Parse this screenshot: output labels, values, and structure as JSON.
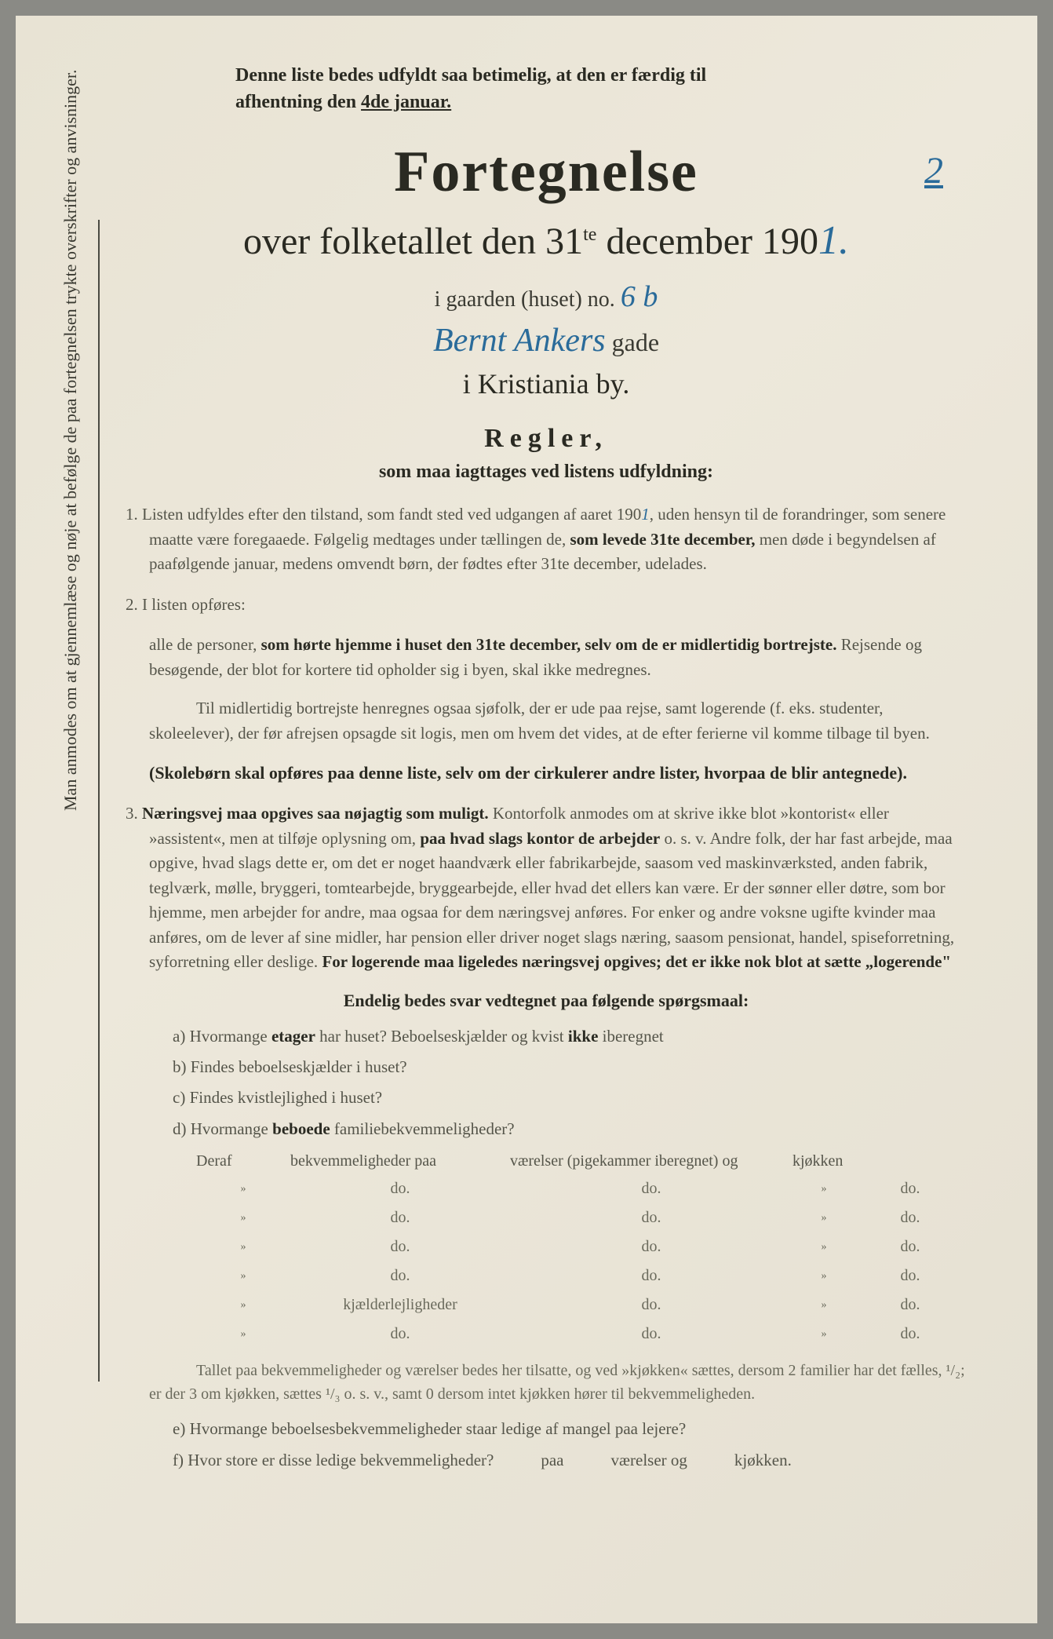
{
  "colors": {
    "paper_bg": "#e8e3d4",
    "text_dark": "#2a2a22",
    "text_body": "#55554a",
    "text_faded": "#6a6a5c",
    "handwriting": "#2a6b9a",
    "page_edge": "#8a8a85"
  },
  "typography": {
    "title_fontsize": 74,
    "subtitle_fontsize": 48,
    "body_fontsize": 21,
    "header_fontsize": 24
  },
  "sidebar": "Man anmodes om at gjennemlæse og nøje at befølge de paa fortegnelsen trykte overskrifter og anvisninger.",
  "top_notice_line1": "Denne liste bedes udfyldt saa betimelig, at den er færdig til",
  "top_notice_line2_pre": "afhentning den ",
  "top_notice_line2_under": "4de januar.",
  "page_number_hw": "2",
  "title": "Fortegnelse",
  "subtitle_pre": "over folketallet den 31",
  "subtitle_sup": "te",
  "subtitle_post": " december 190",
  "year_hw": "1.",
  "gaard_label": "i gaarden (huset) no.",
  "gaard_no_hw": "6 b",
  "street_hw": "Bernt Ankers",
  "gade_label": "gade",
  "city": "i Kristiania by.",
  "regler": "Regler,",
  "regler_sub": "som maa iagttages ved listens udfyldning:",
  "rule1_num": "1.",
  "rule1_text_a": "Listen udfyldes efter den tilstand, som fandt sted ved udgangen af aaret 190",
  "rule1_hw": "1",
  "rule1_text_b": ", uden hensyn til de forandringer, som senere maatte være foregaaede. Følgelig medtages under tællingen de, ",
  "rule1_bold1": "som levede 31te december,",
  "rule1_text_c": " men døde i begyndelsen af paafølgende januar, medens omvendt børn, der fødtes efter 31te december, udelades.",
  "rule2_num": "2.",
  "rule2_text_a": "I listen opføres:",
  "rule2_sub1_a": "alle de personer, ",
  "rule2_sub1_bold": "som hørte hjemme i huset den 31te december, selv om de er midlertidig bortrejste.",
  "rule2_sub1_b": " Rejsende og besøgende, der blot for kortere tid opholder sig i byen, skal ikke medregnes.",
  "rule2_sub2": "Til midlertidig bortrejste henregnes ogsaa sjøfolk, der er ude paa rejse, samt logerende (f. eks. studenter, skoleelever), der før afrejsen opsagde sit logis, men om hvem det vides, at de efter ferierne vil komme tilbage til byen.",
  "rule2_sub3": "(Skolebørn skal opføres paa denne liste, selv om der cirkulerer andre lister, hvorpaa de blir antegnede).",
  "rule3_num": "3.",
  "rule3_bold1": "Næringsvej maa opgives saa nøjagtig som muligt.",
  "rule3_text_a": " Kontorfolk anmodes om at skrive ikke blot »kontorist« eller »assistent«, men at tilføje oplysning om, ",
  "rule3_bold2": "paa hvad slags kontor de arbejder",
  "rule3_text_b": " o. s. v. Andre folk, der har fast arbejde, maa opgive, hvad slags dette er, om det er noget haandværk eller fabrikarbejde, saasom ved maskinværksted, anden fabrik, teglværk, mølle, bryggeri, tomtearbejde, bryggearbejde, eller hvad det ellers kan være. Er der sønner eller døtre, som bor hjemme, men arbejder for andre, maa ogsaa for dem næringsvej anføres. For enker og andre voksne ugifte kvinder maa anføres, om de lever af sine midler, har pension eller driver noget slags næring, saasom pensionat, handel, spiseforretning, syforretning eller deslige. ",
  "rule3_bold3": "For logerende maa ligeledes næringsvej opgives; det er ikke nok blot at sætte „logerende\"",
  "questions_hdr": "Endelig bedes svar vedtegnet paa følgende spørgsmaal:",
  "qa_pre": "a) Hvormange ",
  "qa_bold": "etager",
  "qa_mid": " har huset? Beboelseskjælder og kvist ",
  "qa_bold2": "ikke",
  "qa_post": " iberegnet",
  "qb": "b) Findes beboelseskjælder i huset?",
  "qc": "c) Findes kvistlejlighed i huset?",
  "qd_pre": "d) Hvormange ",
  "qd_bold": "beboede",
  "qd_post": " familiebekvemmeligheder?",
  "table": {
    "h1": "Deraf",
    "h2": "bekvemmeligheder paa",
    "h3": "værelser (pigekammer iberegnet) og",
    "h4": "kjøkken",
    "rows": [
      {
        "c1": "»",
        "c2": "do.",
        "c3": "do.",
        "c3b": "»",
        "c4": "do."
      },
      {
        "c1": "»",
        "c2": "do.",
        "c3": "do.",
        "c3b": "»",
        "c4": "do."
      },
      {
        "c1": "»",
        "c2": "do.",
        "c3": "do.",
        "c3b": "»",
        "c4": "do."
      },
      {
        "c1": "»",
        "c2": "do.",
        "c3": "do.",
        "c3b": "»",
        "c4": "do."
      },
      {
        "c1": "»",
        "c2": "kjælderlejligheder",
        "c3": "do.",
        "c3b": "»",
        "c4": "do."
      },
      {
        "c1": "»",
        "c2": "do.",
        "c3": "do.",
        "c3b": "»",
        "c4": "do."
      }
    ]
  },
  "footnote1": "Tallet paa bekvemmeligheder og værelser bedes her tilsatte, og ved »kjøkken« sættes, dersom 2 familier har det fælles, ¹/₂; er der 3 om kjøkken, sættes ¹/₃ o. s. v., samt 0 dersom intet kjøkken hører til bekvemmeligheden.",
  "qe": "e) Hvormange beboelsesbekvemmeligheder staar ledige af mangel paa lejere?",
  "qf_a": "f) Hvor store er disse ledige bekvemmeligheder?",
  "qf_b": "paa",
  "qf_c": "værelser og",
  "qf_d": "kjøkken."
}
